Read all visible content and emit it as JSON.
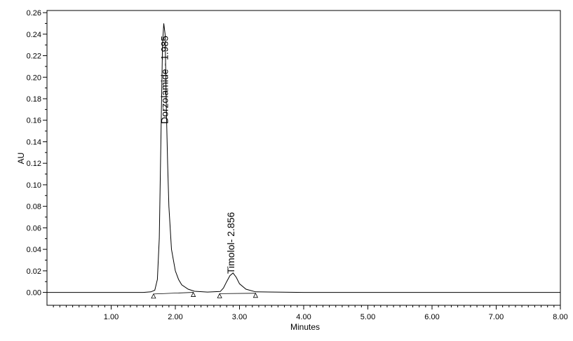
{
  "chart_data": {
    "type": "line",
    "title": "",
    "xlabel": "Minutes",
    "ylabel": "AU",
    "xlim": [
      0.0,
      8.0
    ],
    "ylim": [
      -0.012,
      0.262
    ],
    "grid": false,
    "x_ticks": [
      {
        "value": 1.0,
        "label": "1.00"
      },
      {
        "value": 2.0,
        "label": "2.00"
      },
      {
        "value": 3.0,
        "label": "3.00"
      },
      {
        "value": 4.0,
        "label": "4.00"
      },
      {
        "value": 5.0,
        "label": "5.00"
      },
      {
        "value": 6.0,
        "label": "6.00"
      },
      {
        "value": 7.0,
        "label": "7.00"
      },
      {
        "value": 8.0,
        "label": "8.00"
      }
    ],
    "y_ticks": [
      {
        "value": 0.0,
        "label": "0.00"
      },
      {
        "value": 0.02,
        "label": "0.02"
      },
      {
        "value": 0.04,
        "label": "0.04"
      },
      {
        "value": 0.06,
        "label": "0.06"
      },
      {
        "value": 0.08,
        "label": "0.08"
      },
      {
        "value": 0.1,
        "label": "0.10"
      },
      {
        "value": 0.12,
        "label": "0.12"
      },
      {
        "value": 0.14,
        "label": "0.14"
      },
      {
        "value": 0.16,
        "label": "0.16"
      },
      {
        "value": 0.18,
        "label": "0.18"
      },
      {
        "value": 0.2,
        "label": "0.20"
      },
      {
        "value": 0.22,
        "label": "0.22"
      },
      {
        "value": 0.24,
        "label": "0.24"
      },
      {
        "value": 0.26,
        "label": "0.26"
      }
    ],
    "series": [
      {
        "x": [
          0.0,
          1.5,
          1.62,
          1.68,
          1.72,
          1.75,
          1.78,
          1.8,
          1.82,
          1.84,
          1.86,
          1.88,
          1.9,
          1.94,
          2.0,
          2.05,
          2.1,
          2.2,
          2.3,
          2.5,
          2.7,
          2.75,
          2.8,
          2.85,
          2.9,
          2.95,
          3.0,
          3.1,
          3.25,
          4.0,
          8.0
        ],
        "y": [
          0.0,
          0.0,
          0.0005,
          0.002,
          0.012,
          0.05,
          0.16,
          0.23,
          0.25,
          0.24,
          0.17,
          0.12,
          0.08,
          0.04,
          0.02,
          0.012,
          0.007,
          0.003,
          0.001,
          0.0003,
          0.0008,
          0.004,
          0.01,
          0.0155,
          0.018,
          0.014,
          0.008,
          0.003,
          0.0005,
          0.0,
          0.0
        ]
      }
    ],
    "baselines": [
      {
        "x": [
          1.66,
          2.28
        ],
        "y": [
          -0.0015,
          0.0
        ]
      },
      {
        "x": [
          2.69,
          3.25
        ],
        "y": [
          -0.0012,
          -0.0008
        ]
      }
    ],
    "integration_markers": [
      {
        "x": 1.66,
        "y": -0.0015
      },
      {
        "x": 2.28,
        "y": 0.0
      },
      {
        "x": 2.69,
        "y": -0.0012
      },
      {
        "x": 3.25,
        "y": -0.0008
      }
    ],
    "peaks": [
      {
        "name": "Dorzolamide",
        "rt": 1.985,
        "label": "Dorzolamide - 1.985",
        "x": 1.84,
        "y": 0.25
      },
      {
        "name": "Timolol",
        "rt": 2.856,
        "label": "Timolol- 2.856",
        "x": 2.85,
        "y": 0.018
      }
    ]
  }
}
